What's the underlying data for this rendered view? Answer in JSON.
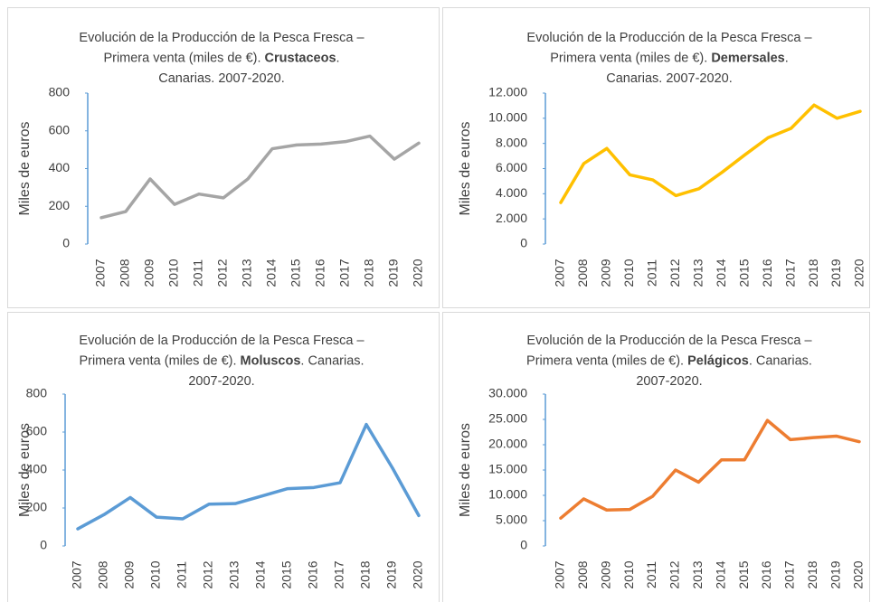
{
  "chart_data": [
    {
      "type": "line",
      "title_lines": [
        [
          {
            "text": "Evolución de la Producción de la Pesca Fresca –"
          }
        ],
        [
          {
            "text": "Primera venta (miles de €). "
          },
          {
            "text": "Crustaceos",
            "bold": true
          },
          {
            "text": "."
          }
        ],
        [
          {
            "text": "Canarias. 2007-2020."
          }
        ]
      ],
      "y_label": "Miles de euros",
      "categories": [
        "2007",
        "2008",
        "2009",
        "2010",
        "2011",
        "2012",
        "2013",
        "2014",
        "2015",
        "2016",
        "2017",
        "2018",
        "2019",
        "2020"
      ],
      "values": [
        140,
        172,
        345,
        210,
        265,
        245,
        345,
        505,
        525,
        530,
        543,
        572,
        450,
        535
      ],
      "color": "#a5a5a5",
      "ylim": [
        0,
        800
      ],
      "yticks": [
        0,
        200,
        400,
        600,
        800
      ]
    },
    {
      "type": "line",
      "title_lines": [
        [
          {
            "text": "Evolución de la Producción de la Pesca Fresca –"
          }
        ],
        [
          {
            "text": "Primera venta (miles de €). "
          },
          {
            "text": "Demersales",
            "bold": true
          },
          {
            "text": "."
          }
        ],
        [
          {
            "text": "Canarias. 2007-2020."
          }
        ]
      ],
      "y_label": "Miles de euros",
      "categories": [
        "2007",
        "2008",
        "2009",
        "2010",
        "2011",
        "2012",
        "2013",
        "2014",
        "2015",
        "2016",
        "2017",
        "2018",
        "2019",
        "2020"
      ],
      "values": [
        3300,
        6400,
        7600,
        5500,
        5100,
        3850,
        4400,
        5700,
        7100,
        8450,
        9200,
        11050,
        10000,
        10550
      ],
      "color": "#ffc000",
      "ylim": [
        0,
        12000
      ],
      "yticks": [
        0,
        {
          "value": 2000,
          "label": "2.000"
        },
        {
          "value": 4000,
          "label": "4.000"
        },
        {
          "value": 6000,
          "label": "6.000"
        },
        {
          "value": 8000,
          "label": "8.000"
        },
        {
          "value": 10000,
          "label": "10.000"
        },
        {
          "value": 12000,
          "label": "12.000"
        }
      ]
    },
    {
      "type": "line",
      "title_lines": [
        [
          {
            "text": "Evolución de la Producción de la Pesca Fresca –"
          }
        ],
        [
          {
            "text": "Primera venta (miles de €). "
          },
          {
            "text": "Moluscos",
            "bold": true
          },
          {
            "text": ". Canarias."
          }
        ],
        [
          {
            "text": "2007-2020."
          }
        ]
      ],
      "y_label": "Miles de euros",
      "categories": [
        "2007",
        "2008",
        "2009",
        "2010",
        "2011",
        "2012",
        "2013",
        "2014",
        "2015",
        "2016",
        "2017",
        "2018",
        "2019",
        "2020"
      ],
      "values": [
        90,
        165,
        255,
        152,
        143,
        220,
        223,
        262,
        302,
        308,
        333,
        640,
        410,
        160
      ],
      "color": "#5b9bd5",
      "ylim": [
        0,
        800
      ],
      "yticks": [
        0,
        200,
        400,
        600,
        800
      ]
    },
    {
      "type": "line",
      "title_lines": [
        [
          {
            "text": "Evolución de la Producción de la Pesca Fresca –"
          }
        ],
        [
          {
            "text": "Primera venta (miles de €). "
          },
          {
            "text": "Pelágicos",
            "bold": true
          },
          {
            "text": ". Canarias."
          }
        ],
        [
          {
            "text": "2007-2020."
          }
        ]
      ],
      "y_label": "Miles de euros",
      "categories": [
        "2007",
        "2008",
        "2009",
        "2010",
        "2011",
        "2012",
        "2013",
        "2014",
        "2015",
        "2016",
        "2017",
        "2018",
        "2019",
        "2020"
      ],
      "values": [
        5500,
        9300,
        7100,
        7200,
        9800,
        15000,
        12600,
        17000,
        17000,
        24800,
        21000,
        21400,
        21700,
        20600
      ],
      "color": "#ed7d31",
      "ylim": [
        0,
        30000
      ],
      "yticks": [
        0,
        {
          "value": 5000,
          "label": "5.000"
        },
        {
          "value": 10000,
          "label": "10.000"
        },
        {
          "value": 15000,
          "label": "15.000"
        },
        {
          "value": 20000,
          "label": "20.000"
        },
        {
          "value": 25000,
          "label": "25.000"
        },
        {
          "value": 30000,
          "label": "30.000"
        }
      ]
    }
  ]
}
